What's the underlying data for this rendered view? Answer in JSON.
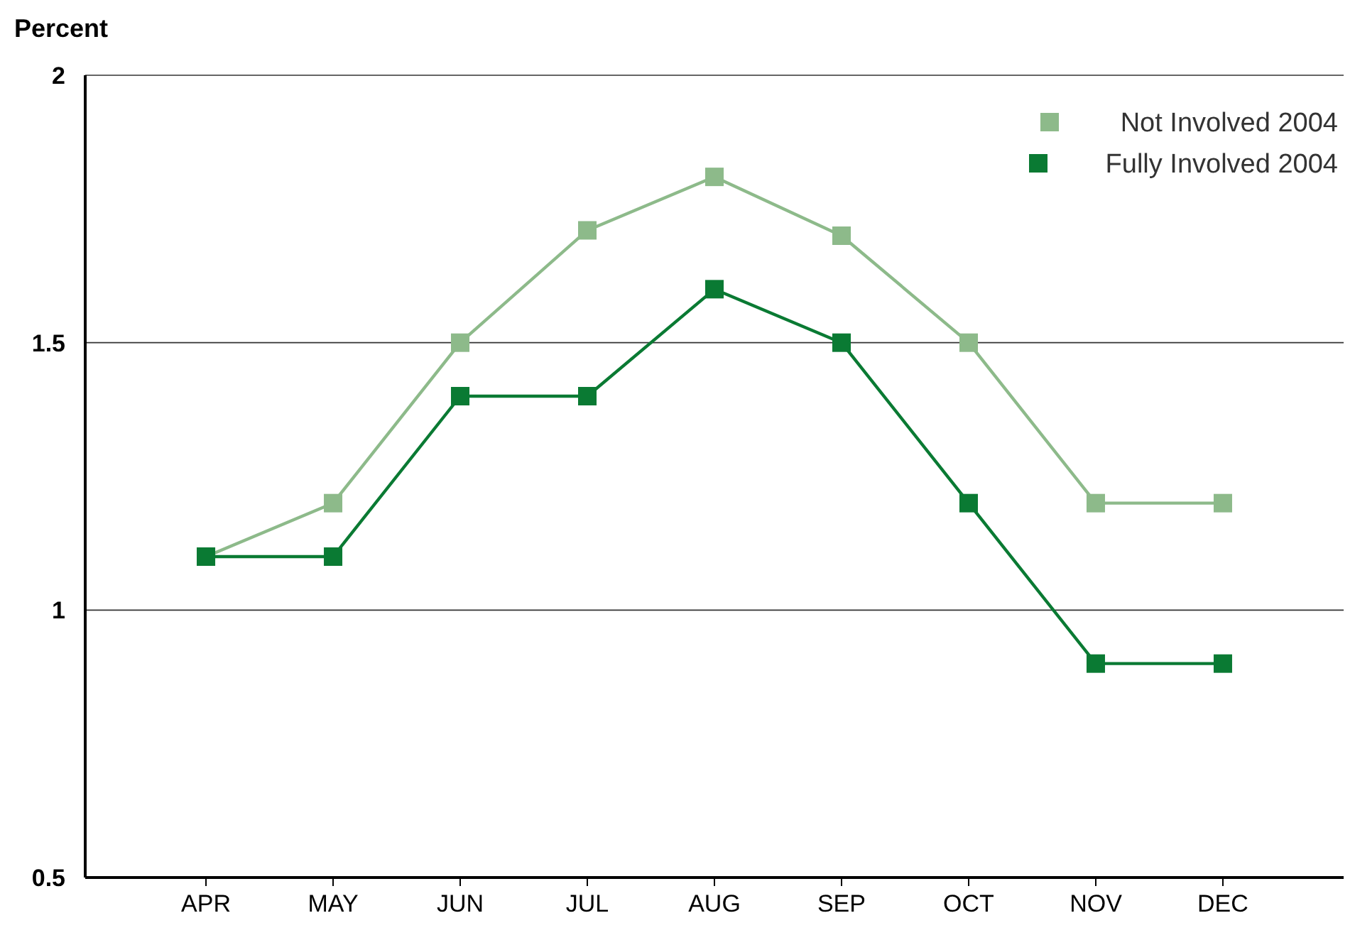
{
  "chart_data": {
    "type": "line",
    "ylabel": "Percent",
    "categories": [
      "APR",
      "MAY",
      "JUN",
      "JUL",
      "AUG",
      "SEP",
      "OCT",
      "NOV",
      "DEC"
    ],
    "series": [
      {
        "name": "Not Involved 2004",
        "color": "#8dba8a",
        "values": [
          1.1,
          1.2,
          1.5,
          1.71,
          1.81,
          1.7,
          1.5,
          1.2,
          1.2
        ]
      },
      {
        "name": "Fully Involved 2004",
        "color": "#0a7a33",
        "values": [
          1.1,
          1.1,
          1.4,
          1.4,
          1.6,
          1.5,
          1.2,
          0.9,
          0.9
        ]
      }
    ],
    "ylim": [
      0.5,
      2
    ],
    "yticks": [
      0.5,
      1,
      1.5,
      2
    ],
    "grid": "y",
    "legend": "top right",
    "marker": "square",
    "line_style": "solid"
  }
}
